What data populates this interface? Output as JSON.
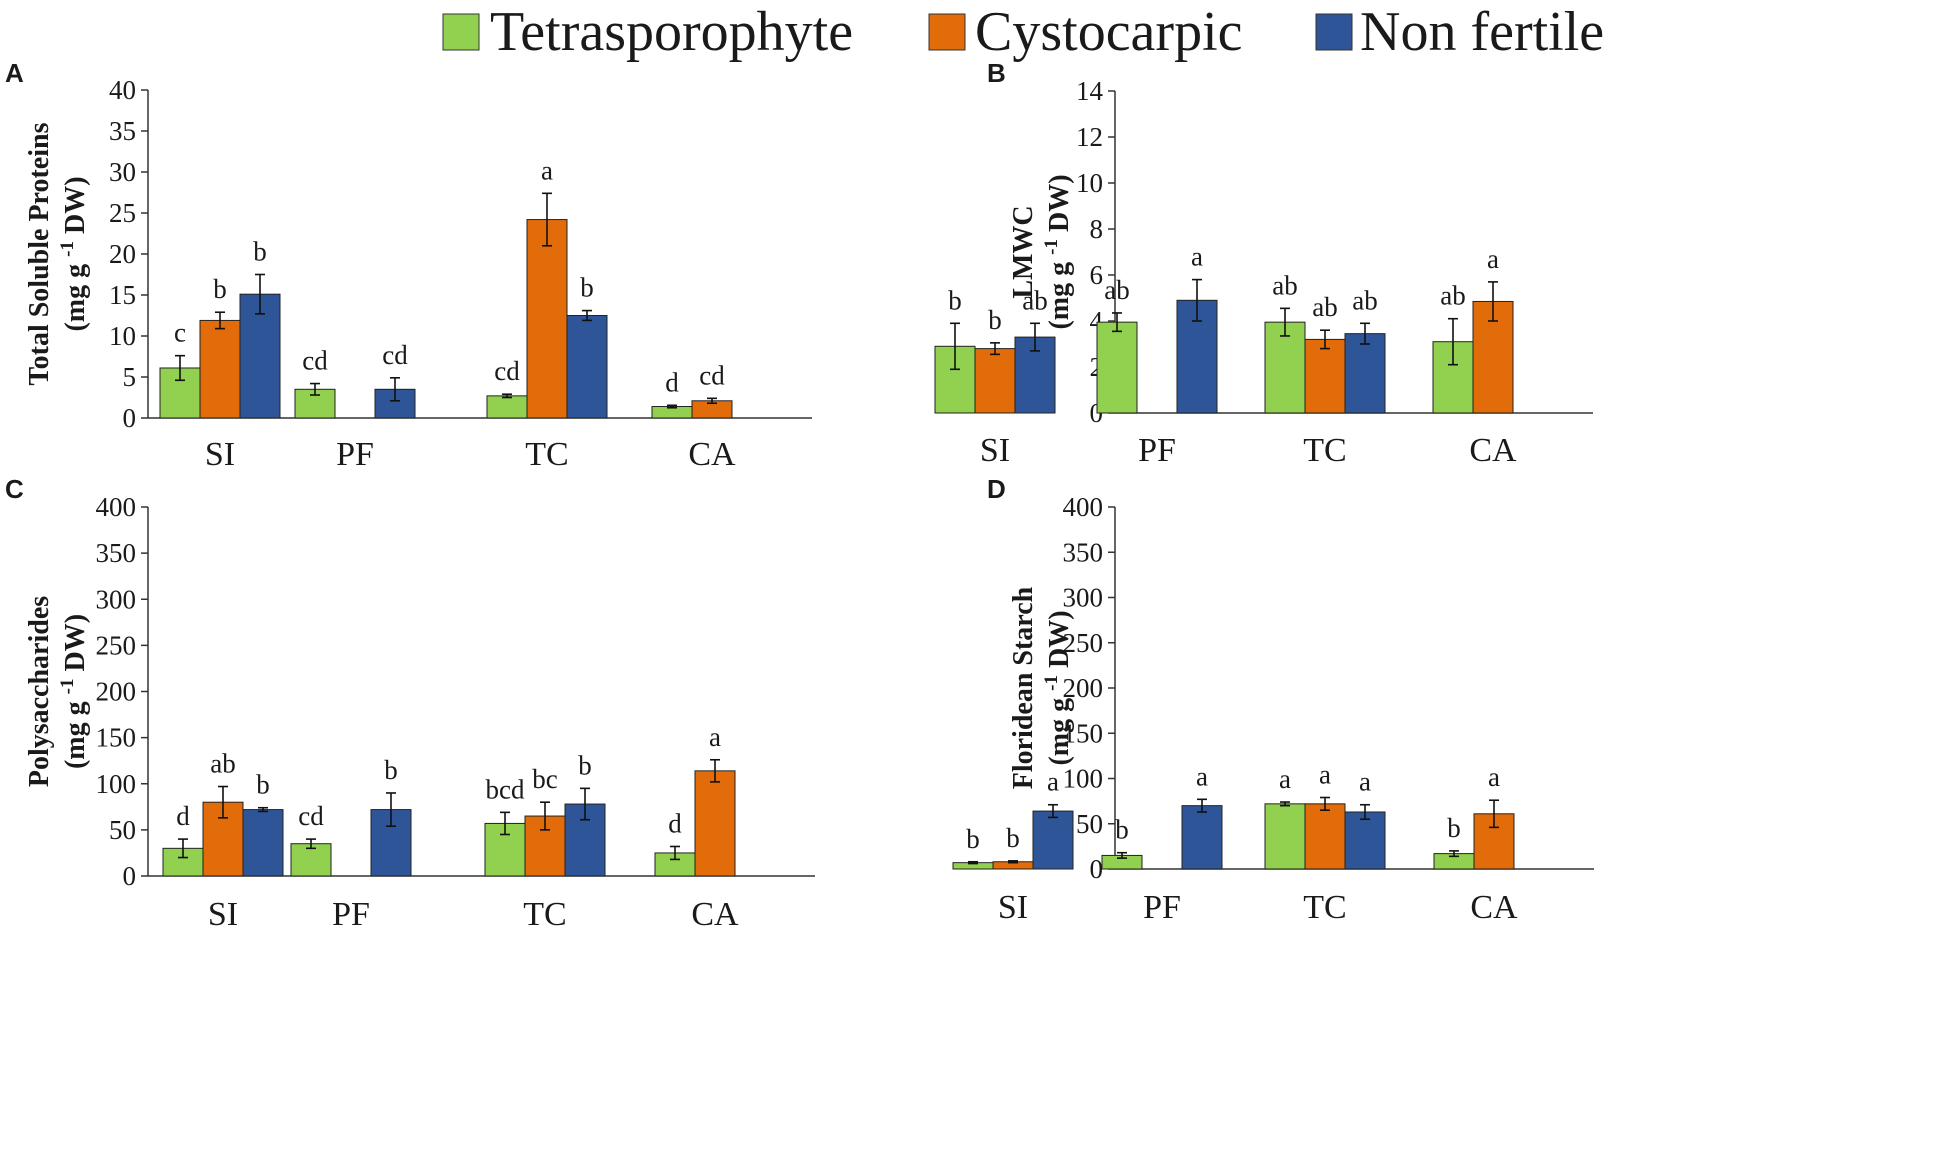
{
  "legend": [
    {
      "name": "Tetrasporophyte",
      "color": "#92d050"
    },
    {
      "name": "Cystocarpic",
      "color": "#e26b0a"
    },
    {
      "name": "Non fertile",
      "color": "#2e5597"
    }
  ],
  "chart_data": [
    {
      "panel": "A",
      "type": "bar",
      "ylabel_main": "Total Soluble Proteins",
      "ylabel_unit_pre": "(mg g",
      "ylabel_unit_sup": "-1",
      "ylabel_unit_post": " DW)",
      "ylim": [
        0,
        40
      ],
      "ytick_step": 5,
      "yticks": [
        "0",
        "5",
        "10",
        "15",
        "20",
        "25",
        "30",
        "35",
        "40"
      ],
      "categories": [
        "SI",
        "PF",
        "TC",
        "CA"
      ],
      "series": [
        {
          "name": "Tetrasporophyte",
          "values": [
            6.1,
            3.5,
            2.7,
            1.4
          ],
          "errors": [
            1.5,
            0.7,
            0.2,
            0.15
          ],
          "letters": [
            "c",
            "cd",
            "cd",
            "d"
          ]
        },
        {
          "name": "Cystocarpic",
          "values": [
            11.9,
            null,
            24.2,
            2.1
          ],
          "errors": [
            1.0,
            null,
            3.2,
            0.3
          ],
          "letters": [
            "b",
            "",
            "a",
            "cd"
          ]
        },
        {
          "name": "Non fertile",
          "values": [
            15.1,
            3.5,
            12.5,
            null
          ],
          "errors": [
            2.4,
            1.4,
            0.6,
            null
          ],
          "letters": [
            "b",
            "cd",
            "b",
            ""
          ]
        }
      ]
    },
    {
      "panel": "B",
      "type": "bar",
      "ylabel_main": "LMWC",
      "ylabel_unit_pre": "(mg g",
      "ylabel_unit_sup": "-1",
      "ylabel_unit_post": " DW)",
      "ylim": [
        0,
        14
      ],
      "ytick_step": 2,
      "yticks": [
        "0",
        "2",
        "4",
        "6",
        "8",
        "10",
        "12",
        "14"
      ],
      "categories": [
        "SI",
        "PF",
        "TC",
        "CA"
      ],
      "series": [
        {
          "name": "Tetrasporophyte",
          "values": [
            2.9,
            3.95,
            3.95,
            3.1
          ],
          "errors": [
            1.0,
            0.4,
            0.6,
            1.0
          ],
          "letters": [
            "b",
            "ab",
            "ab",
            "ab"
          ]
        },
        {
          "name": "Cystocarpic",
          "values": [
            2.8,
            null,
            3.2,
            4.85
          ],
          "errors": [
            0.25,
            null,
            0.4,
            0.85
          ],
          "letters": [
            "b",
            "",
            "ab",
            "a"
          ]
        },
        {
          "name": "Non fertile",
          "values": [
            3.3,
            4.9,
            3.45,
            null
          ],
          "errors": [
            0.6,
            0.9,
            0.45,
            null
          ],
          "letters": [
            "ab",
            "a",
            "ab",
            ""
          ]
        }
      ]
    },
    {
      "panel": "C",
      "type": "bar",
      "ylabel_main": "Polysaccharides",
      "ylabel_unit_pre": "(mg g",
      "ylabel_unit_sup": "-1",
      "ylabel_unit_post": " DW)",
      "ylim": [
        0,
        400
      ],
      "ytick_step": 50,
      "yticks": [
        "0",
        "50",
        "100",
        "150",
        "200",
        "250",
        "300",
        "350",
        "400"
      ],
      "categories": [
        "SI",
        "PF",
        "TC",
        "CA"
      ],
      "series": [
        {
          "name": "Tetrasporophyte",
          "values": [
            30,
            35,
            57,
            25
          ],
          "errors": [
            10,
            5,
            12,
            7
          ],
          "letters": [
            "d",
            "cd",
            "bcd",
            "d"
          ]
        },
        {
          "name": "Cystocarpic",
          "values": [
            80,
            null,
            65,
            114
          ],
          "errors": [
            17,
            null,
            15,
            12
          ],
          "letters": [
            "ab",
            "",
            "bc",
            "a"
          ]
        },
        {
          "name": "Non fertile",
          "values": [
            72,
            72,
            78,
            null
          ],
          "errors": [
            2,
            18,
            17,
            null
          ],
          "letters": [
            "b",
            "b",
            "b",
            ""
          ]
        }
      ]
    },
    {
      "panel": "D",
      "type": "bar",
      "ylabel_main": "Floridean Starch",
      "ylabel_unit_pre": "(mg g",
      "ylabel_unit_sup": "-1",
      "ylabel_unit_post": " DW)",
      "ylim": [
        0,
        400
      ],
      "ytick_step": 50,
      "yticks": [
        "0",
        "50",
        "100",
        "150",
        "200",
        "250",
        "300",
        "350",
        "400"
      ],
      "categories": [
        "SI",
        "PF",
        "TC",
        "CA"
      ],
      "series": [
        {
          "name": "Tetrasporophyte",
          "values": [
            7,
            15,
            72,
            17
          ],
          "errors": [
            1,
            3,
            2,
            3
          ],
          "letters": [
            "b",
            "b",
            "a",
            "b"
          ]
        },
        {
          "name": "Cystocarpic",
          "values": [
            8,
            null,
            72,
            61
          ],
          "errors": [
            1,
            null,
            7,
            15
          ],
          "letters": [
            "b",
            "",
            "a",
            "a"
          ]
        },
        {
          "name": "Non fertile",
          "values": [
            64,
            70,
            63,
            null
          ],
          "errors": [
            7,
            7,
            8,
            null
          ],
          "letters": [
            "a",
            "a",
            "a",
            ""
          ]
        }
      ]
    }
  ]
}
